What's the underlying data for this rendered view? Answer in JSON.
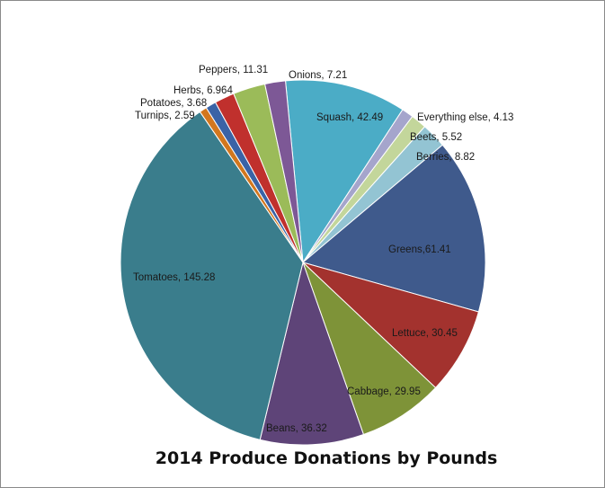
{
  "chart_data": {
    "type": "pie",
    "title": "2014 Produce Donations by Pounds",
    "slices": [
      {
        "label": "Squash",
        "value": 42.49,
        "color": "#4BACC6"
      },
      {
        "label": "Everything else",
        "value": 4.13,
        "color": "#A5A5CC"
      },
      {
        "label": "Beets",
        "value": 5.52,
        "color": "#C3D69B"
      },
      {
        "label": "Berries",
        "value": 8.82,
        "color": "#93C4D3"
      },
      {
        "label": "Greens",
        "value": 61.41,
        "color": "#3F5A8C"
      },
      {
        "label": "Lettuce",
        "value": 30.45,
        "color": "#A3322E"
      },
      {
        "label": "Cabbage",
        "value": 29.95,
        "color": "#7E9338"
      },
      {
        "label": "Beans",
        "value": 36.32,
        "color": "#5E4478"
      },
      {
        "label": "Tomatoes",
        "value": 145.28,
        "color": "#3A7D8C"
      },
      {
        "label": "Turnips",
        "value": 2.59,
        "color": "#D2771E"
      },
      {
        "label": "Potatoes",
        "value": 3.68,
        "color": "#3A63A6"
      },
      {
        "label": "Herbs",
        "value": 6.964,
        "color": "#C0302D"
      },
      {
        "label": "Peppers",
        "value": 11.31,
        "color": "#9BBB59"
      },
      {
        "label": "Onions",
        "value": 7.21,
        "color": "#7D5896"
      }
    ],
    "data_labels": [
      "Squash, 42.49",
      "Everything else, 4.13",
      "Beets, 5.52",
      "Berries, 8.82",
      "Greens,61.41",
      "Lettuce, 30.45",
      "Cabbage, 29.95",
      "Beans, 36.32",
      "Tomatoes, 145.28",
      "Turnips, 2.59",
      "Potatoes, 3.68",
      "Herbs, 6.964",
      "Peppers, 11.31",
      "Onions, 7.21"
    ],
    "legend": "none"
  }
}
